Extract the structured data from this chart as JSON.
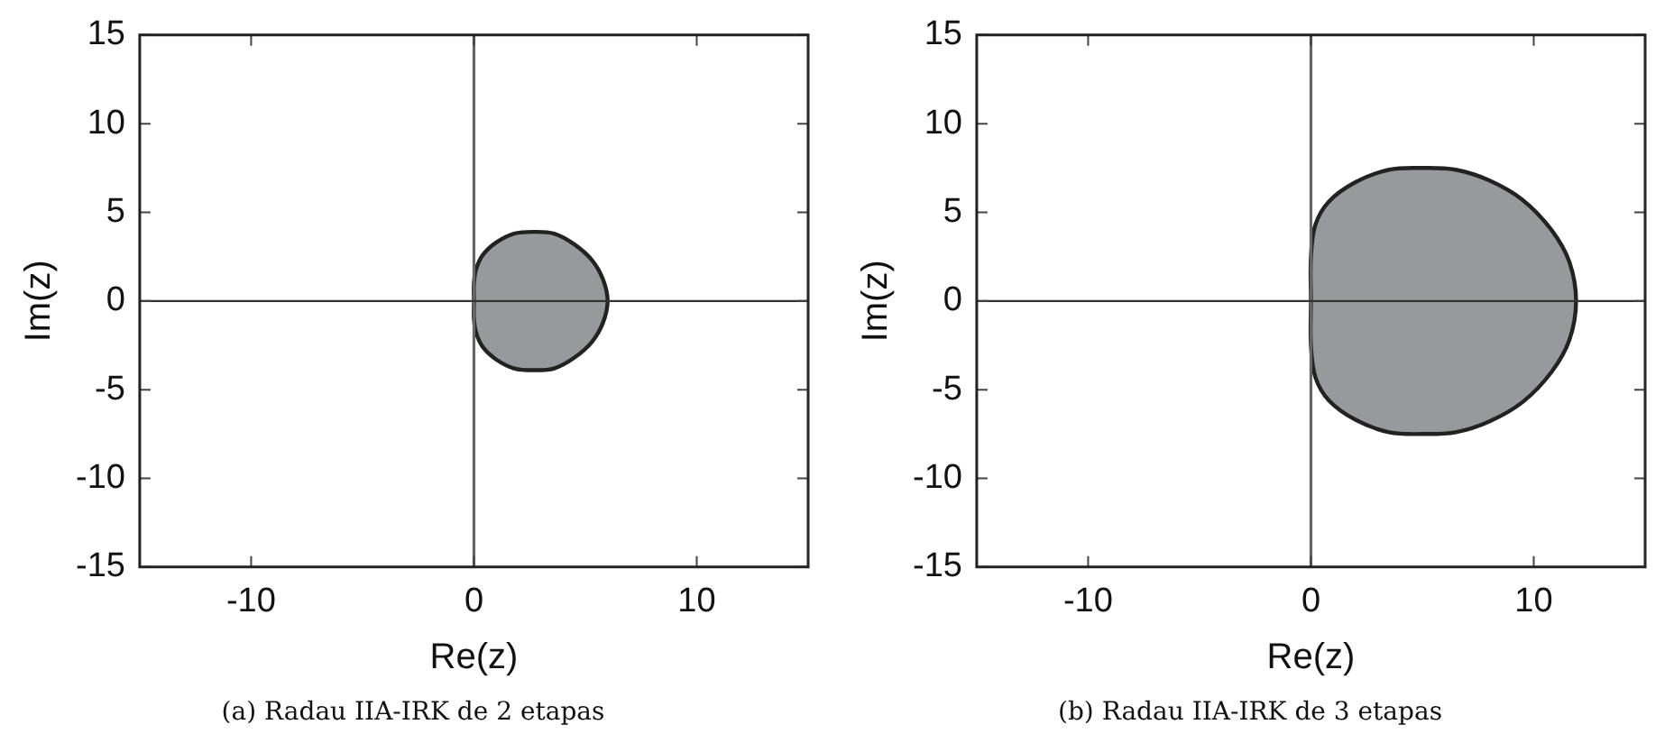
{
  "chart_data": [
    {
      "type": "area",
      "title": "(a) Radau IIA-IRK de 2 etapas",
      "xlabel": "Re(z)",
      "ylabel": "Im(z)",
      "xlim": [
        -15,
        15
      ],
      "ylim": [
        -15,
        15
      ],
      "xticks": [
        -10,
        0,
        10
      ],
      "yticks": [
        -15,
        -10,
        -5,
        0,
        5,
        10,
        15
      ],
      "grid": false,
      "legend": false,
      "marker": "none",
      "series": [
        {
          "color": "#97999c",
          "x": [
            0,
            0,
            0.1,
            0.4,
            1,
            1.8,
            2.7,
            3.6,
            4.5,
            5.3,
            5.8,
            6.0,
            5.8,
            5.3,
            4.5,
            3.6,
            2.7,
            1.8,
            1,
            0.4,
            0.1,
            0,
            0
          ],
          "values": [
            0,
            1,
            1.8,
            2.6,
            3.3,
            3.8,
            3.9,
            3.8,
            3.2,
            2.3,
            1.2,
            0,
            -1.2,
            -2.3,
            -3.2,
            -3.8,
            -3.9,
            -3.8,
            -3.3,
            -2.6,
            -1.8,
            -1,
            0
          ]
        }
      ],
      "ref_lines": [
        {
          "axis": "x",
          "value": 0,
          "color": "#666666"
        },
        {
          "axis": "y",
          "value": 0,
          "color": "#333333"
        }
      ]
    },
    {
      "type": "area",
      "title": "(b) Radau IIA-IRK de 3 etapas",
      "xlabel": "Re(z)",
      "ylabel": "Im(z)",
      "xlim": [
        -15,
        15
      ],
      "ylim": [
        -15,
        15
      ],
      "xticks": [
        -10,
        0,
        10
      ],
      "yticks": [
        -15,
        -10,
        -5,
        0,
        5,
        10,
        15
      ],
      "grid": false,
      "legend": false,
      "marker": "none",
      "series": [
        {
          "color": "#97999c",
          "x": [
            0,
            0,
            0.2,
            0.8,
            2,
            3.5,
            5,
            6.5,
            8,
            9.5,
            10.8,
            11.6,
            11.9,
            11.6,
            10.8,
            9.5,
            8,
            6.5,
            5,
            3.5,
            2,
            0.8,
            0.2,
            0,
            0
          ],
          "values": [
            0,
            2.5,
            4.3,
            5.6,
            6.7,
            7.4,
            7.5,
            7.4,
            6.8,
            5.7,
            4,
            2.2,
            0,
            -2.2,
            -4,
            -5.7,
            -6.8,
            -7.4,
            -7.5,
            -7.4,
            -6.7,
            -5.6,
            -4.3,
            -2.5,
            0
          ]
        }
      ],
      "ref_lines": [
        {
          "axis": "x",
          "value": 0,
          "color": "#666666"
        },
        {
          "axis": "y",
          "value": 0,
          "color": "#333333"
        }
      ]
    }
  ]
}
